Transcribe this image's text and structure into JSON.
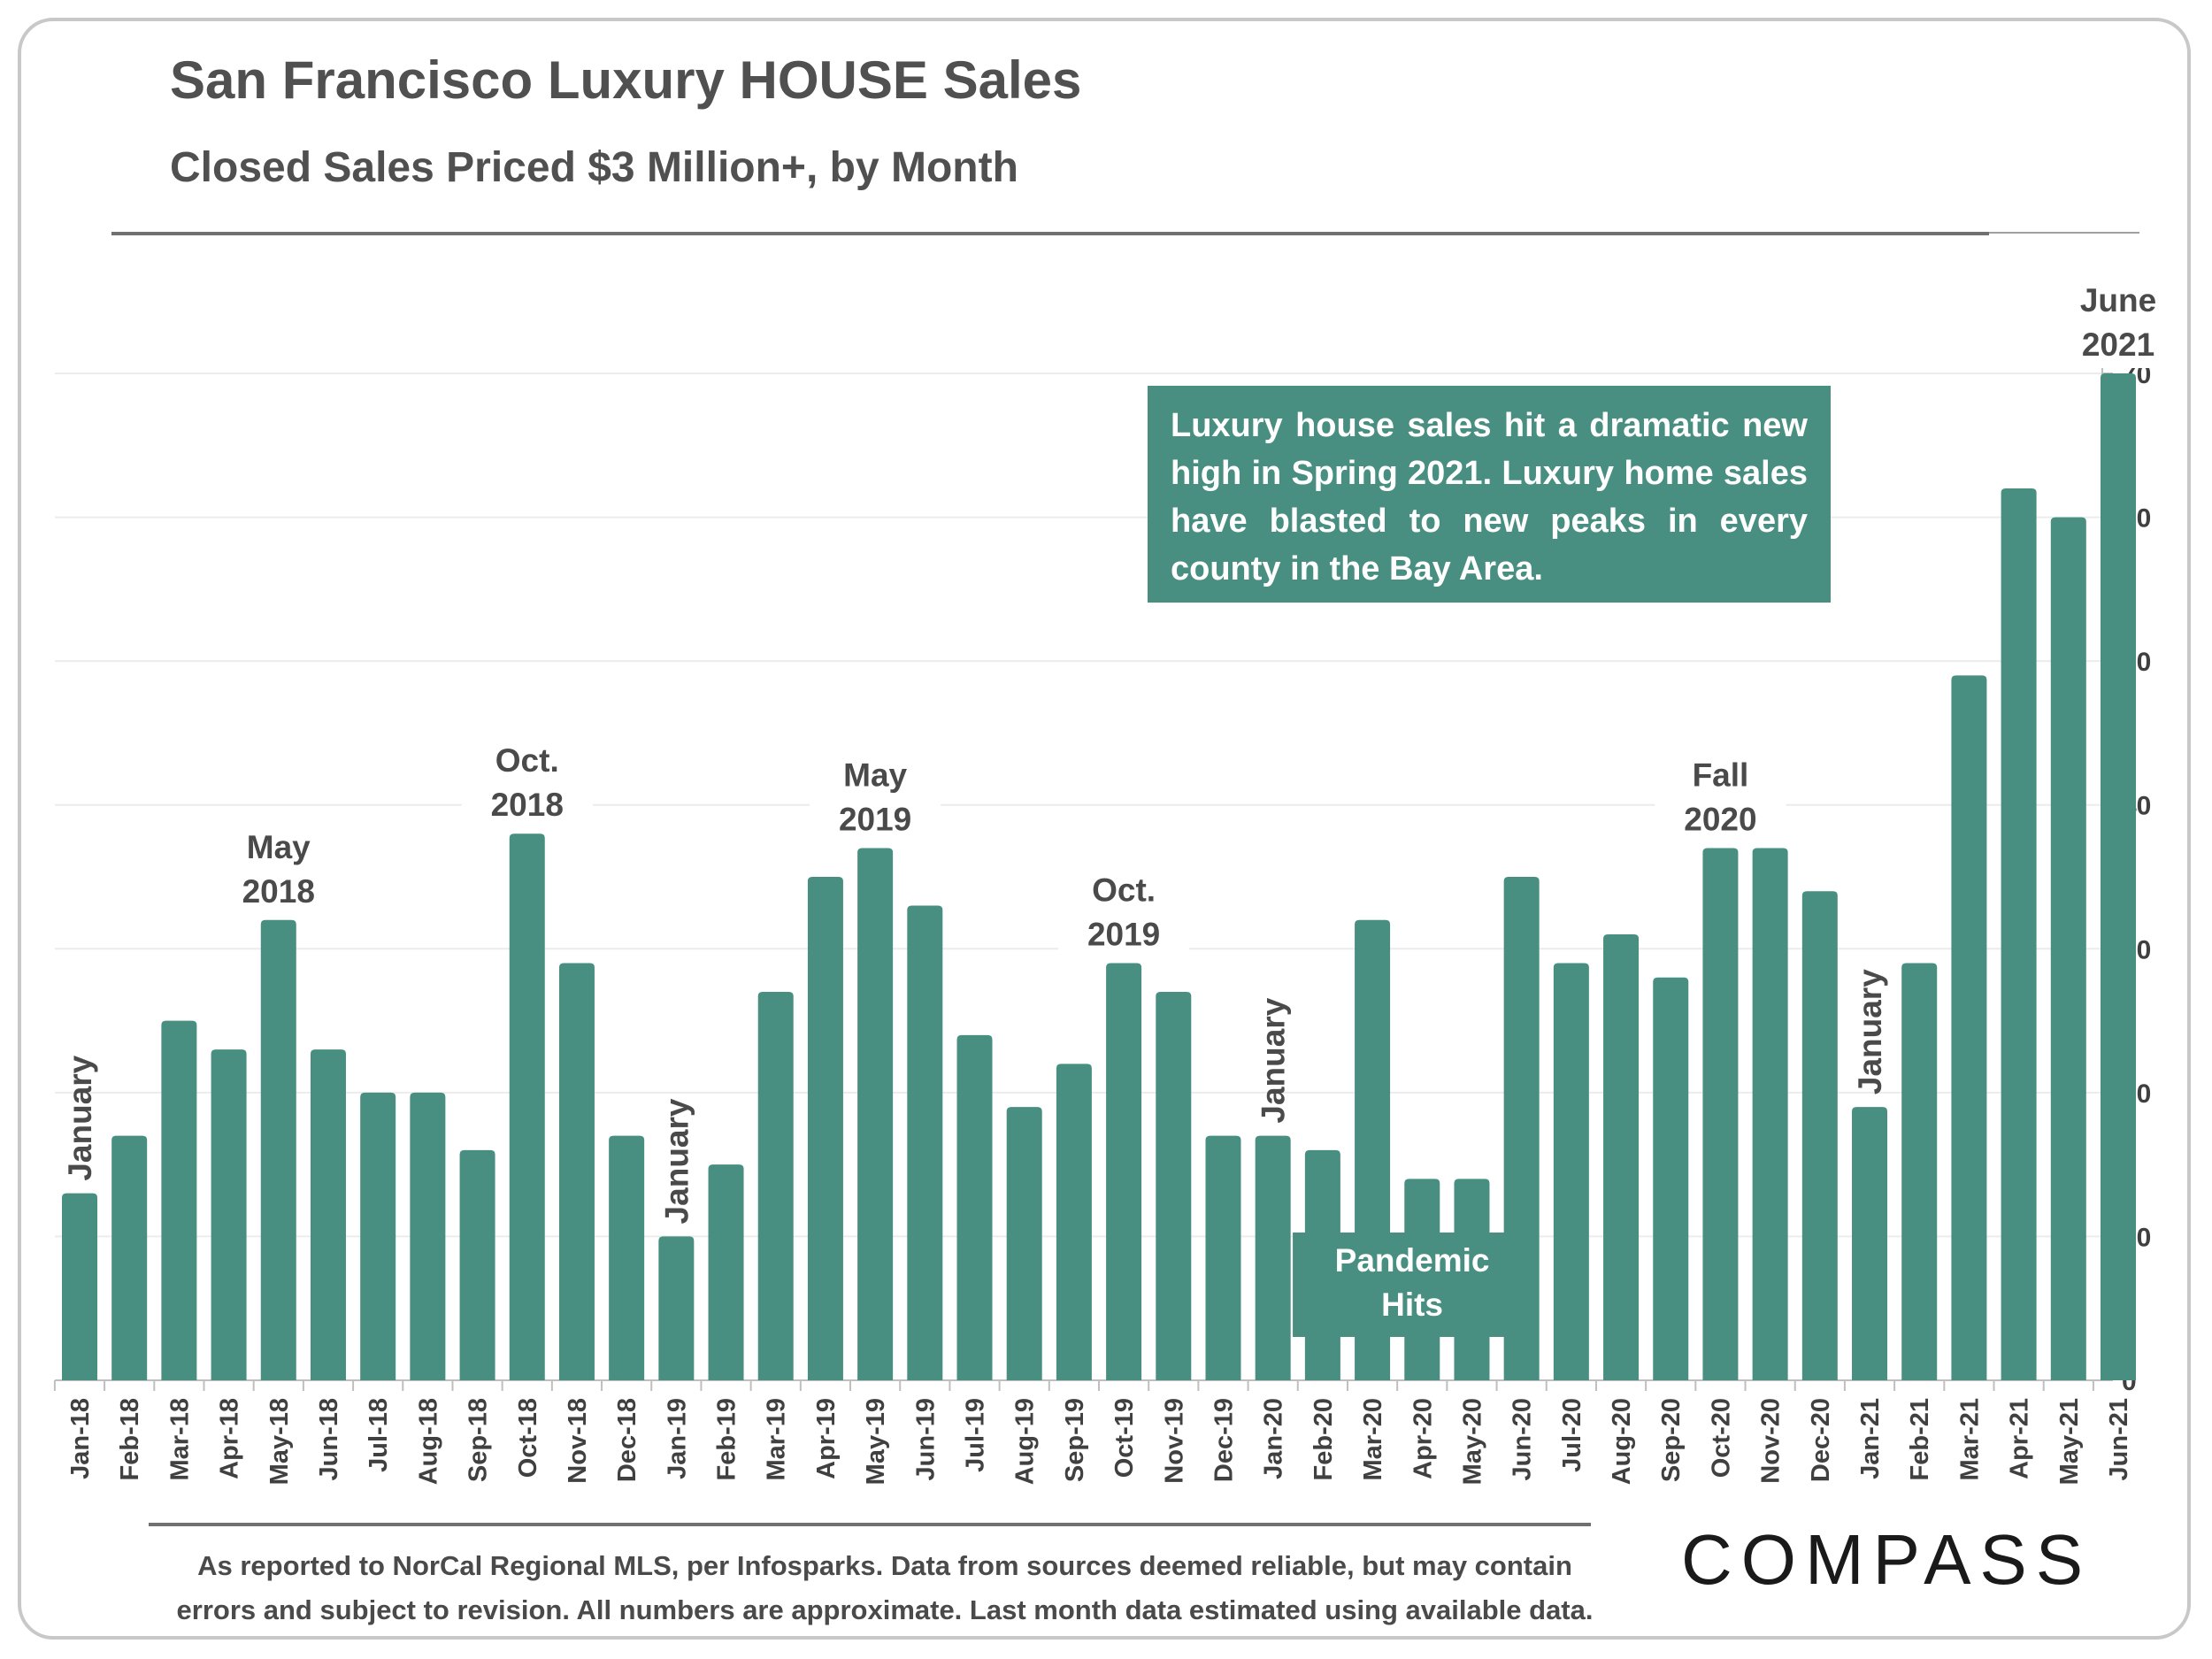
{
  "header": {
    "title": "San Francisco Luxury HOUSE Sales",
    "subtitle": "Closed Sales Priced $3 Million+, by Month"
  },
  "callout": {
    "text": "Luxury house sales hit a dramatic new high in Spring 2021. Luxury home sales have blasted to new peaks in every county in the Bay Area."
  },
  "footer": {
    "line1": "As reported to NorCal Regional MLS, per Infosparks. Data from sources deemed reliable, but may contain",
    "line2": "errors and subject to revision. All numbers are approximate. Last month data estimated using available data.",
    "logo": "COMPASS"
  },
  "colors": {
    "bar": "#488f82",
    "text": "#505050"
  },
  "chart_data": {
    "type": "bar",
    "title": "San Francisco Luxury HOUSE Sales",
    "subtitle": "Closed Sales Priced $3 Million+, by Month",
    "xlabel": "",
    "ylabel": "",
    "y_axis_position": "right",
    "ylim": [
      0,
      70
    ],
    "yticks": [
      0,
      10,
      20,
      30,
      40,
      50,
      60,
      70
    ],
    "grid": true,
    "categories": [
      "Jan-18",
      "Feb-18",
      "Mar-18",
      "Apr-18",
      "May-18",
      "Jun-18",
      "Jul-18",
      "Aug-18",
      "Sep-18",
      "Oct-18",
      "Nov-18",
      "Dec-18",
      "Jan-19",
      "Feb-19",
      "Mar-19",
      "Apr-19",
      "May-19",
      "Jun-19",
      "Jul-19",
      "Aug-19",
      "Sep-19",
      "Oct-19",
      "Nov-19",
      "Dec-19",
      "Jan-20",
      "Feb-20",
      "Mar-20",
      "Apr-20",
      "May-20",
      "Jun-20",
      "Jul-20",
      "Aug-20",
      "Sep-20",
      "Oct-20",
      "Nov-20",
      "Dec-20",
      "Jan-21",
      "Feb-21",
      "Mar-21",
      "Apr-21",
      "May-21",
      "Jun-21"
    ],
    "values": [
      13,
      17,
      25,
      23,
      32,
      23,
      20,
      20,
      16,
      38,
      29,
      17,
      10,
      15,
      27,
      35,
      37,
      33,
      24,
      19,
      22,
      29,
      27,
      17,
      17,
      16,
      32,
      14,
      14,
      35,
      29,
      31,
      28,
      37,
      37,
      34,
      19,
      29,
      49,
      62,
      60,
      70
    ],
    "annotations": [
      {
        "category": "Jan-18",
        "text": "January",
        "rotated": true
      },
      {
        "category": "May-18",
        "text": "May 2018",
        "lines": [
          "May",
          "2018"
        ]
      },
      {
        "category": "Oct-18",
        "text": "Oct. 2018",
        "lines": [
          "Oct.",
          "2018"
        ]
      },
      {
        "category": "Jan-19",
        "text": "January",
        "rotated": true
      },
      {
        "category": "May-19",
        "text": "May 2019",
        "lines": [
          "May",
          "2019"
        ]
      },
      {
        "category": "Oct-19",
        "text": "Oct. 2019",
        "lines": [
          "Oct.",
          "2019"
        ]
      },
      {
        "category": "Jan-20",
        "text": "January",
        "rotated": true
      },
      {
        "category": "Oct-20",
        "text": "Fall 2020",
        "lines": [
          "Fall",
          "2020"
        ]
      },
      {
        "category": "Jan-21",
        "text": "January",
        "rotated": true
      },
      {
        "category": "Jun-21",
        "text": "June 2021",
        "lines": [
          "June",
          "2021"
        ]
      }
    ],
    "pandemic_label": {
      "text": "Pandemic Hits",
      "lines": [
        "Pandemic",
        "Hits"
      ],
      "category": "Mar-20"
    }
  }
}
